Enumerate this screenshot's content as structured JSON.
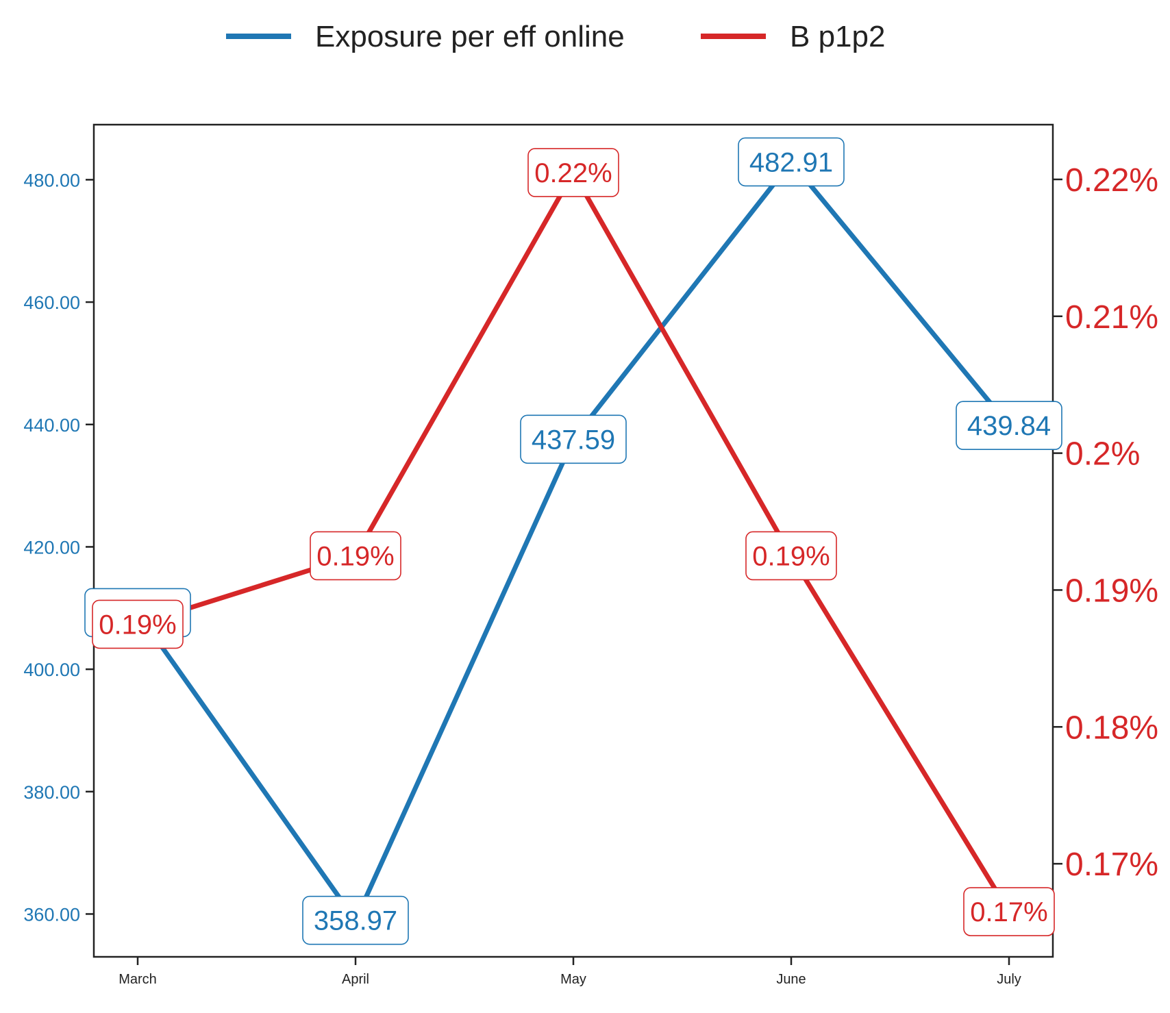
{
  "chart_data": {
    "type": "line",
    "categories": [
      "March",
      "April",
      "May",
      "June",
      "July"
    ],
    "series": [
      {
        "name": "Exposure per eff online",
        "axis": "left",
        "color": "#1f77b4",
        "values": [
          409.25,
          358.97,
          437.59,
          482.91,
          439.84
        ],
        "labels": [
          "409.25",
          "358.97",
          "437.59",
          "482.91",
          "439.84"
        ]
      },
      {
        "name": "B p1p2",
        "axis": "right",
        "color": "#d62728",
        "values": [
          0.1875,
          0.1925,
          0.2205,
          0.1925,
          0.1665
        ],
        "labels": [
          "0.19%",
          "0.19%",
          "0.22%",
          "0.19%",
          "0.17%"
        ]
      }
    ],
    "y_left": {
      "ylim": [
        353,
        489
      ],
      "ticks": [
        360,
        380,
        400,
        420,
        440,
        460,
        480
      ],
      "tick_labels": [
        "360.00",
        "380.00",
        "400.00",
        "420.00",
        "440.00",
        "460.00",
        "480.00"
      ],
      "color": "#1f77b4"
    },
    "y_right": {
      "ylim": [
        0.1632,
        0.224
      ],
      "ticks": [
        0.17,
        0.18,
        0.19,
        0.2,
        0.21,
        0.22
      ],
      "tick_labels": [
        "0.17%",
        "0.18%",
        "0.19%",
        "0.2%",
        "0.21%",
        "0.22%"
      ],
      "color": "#d62728"
    },
    "title": "",
    "xlabel": "",
    "ylabel": "",
    "grid": false,
    "legend_position": "top-center"
  }
}
